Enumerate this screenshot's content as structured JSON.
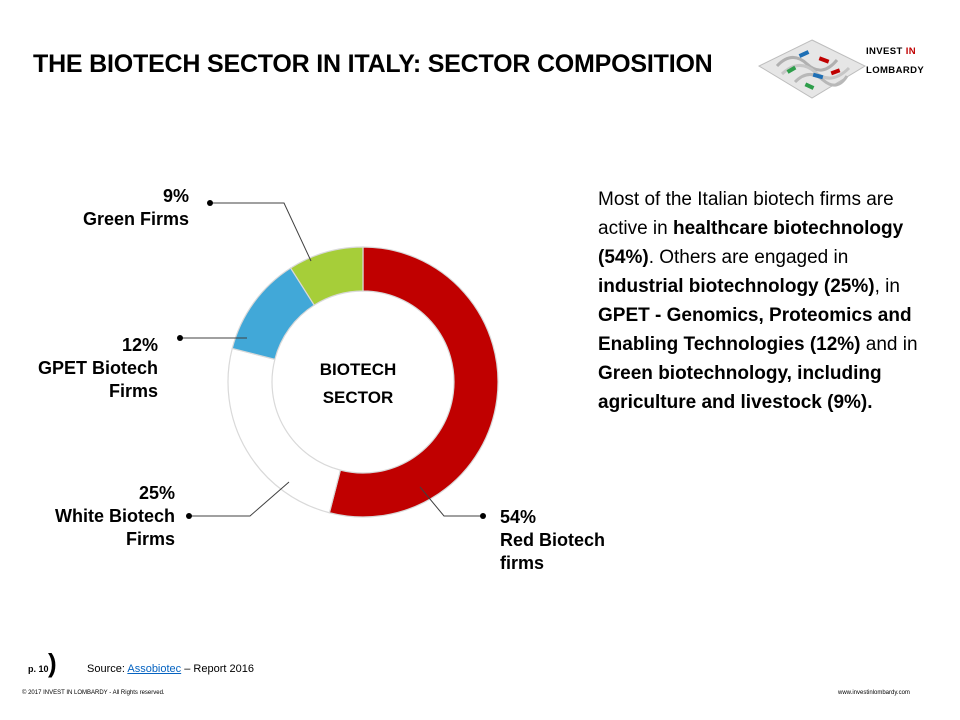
{
  "title": "THE BIOTECH SECTOR IN ITALY: SECTOR COMPOSITION",
  "brand": {
    "line1_prefix": "INVEST ",
    "line1_accent": "IN",
    "line2": "LOMBARDY",
    "accent_color": "#c00000"
  },
  "chart_data": {
    "type": "pie",
    "subtype": "donut",
    "center_label_line1": "BIOTECH",
    "center_label_line2": "SECTOR",
    "slices": [
      {
        "name_lines": [
          "Red Biotech",
          "firms"
        ],
        "value": 54,
        "value_label": "54%",
        "color": "#c00000"
      },
      {
        "name_lines": [
          "White Biotech",
          "Firms"
        ],
        "value": 25,
        "value_label": "25%",
        "color": "#ffffff"
      },
      {
        "name_lines": [
          "GPET Biotech",
          "Firms"
        ],
        "value": 12,
        "value_label": "12%",
        "color": "#41a8d8"
      },
      {
        "name_lines": [
          "Green Firms"
        ],
        "value": 9,
        "value_label": "9%",
        "color": "#a6ce39"
      }
    ]
  },
  "description": {
    "p1": "Most of the Italian biotech firms are active in ",
    "b1": "healthcare biotechnology (54%)",
    "p2": ".  Others are engaged in ",
    "b2": "industrial biotechnology (25%)",
    "p3": ", in ",
    "b3": "GPET - Genomics, Proteomics and Enabling Technologies (12%)",
    "p4": " and in ",
    "b4": "Green biotechnology, including agriculture and livestock (9%)."
  },
  "footer": {
    "page": "p. 10",
    "source_prefix": "Source: ",
    "source_link": "Assobiotec",
    "source_suffix": " – Report 2016",
    "copyright": "© 2017 INVEST IN LOMBARDY -  All Rights reserved.",
    "website": "www.investinlombardy.com"
  }
}
